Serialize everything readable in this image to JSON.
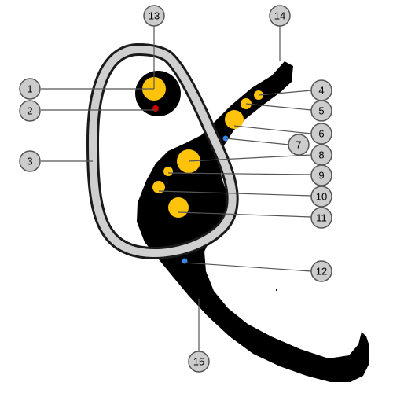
{
  "colors": {
    "background": "#ffffff",
    "body": "#000000",
    "ring_fill": "#cfcfcf",
    "ring_stroke": "#1a1a1a",
    "yellow": "#ffc30b",
    "red": "#cc0000",
    "blue": "#3a86e8",
    "callout_fill": "#cccccc",
    "callout_stroke": "#555555",
    "leader": "#555555"
  },
  "labels": [
    {
      "id": "1",
      "text": "1"
    },
    {
      "id": "2",
      "text": "2"
    },
    {
      "id": "3",
      "text": "3"
    },
    {
      "id": "4",
      "text": "4"
    },
    {
      "id": "5",
      "text": "5"
    },
    {
      "id": "6",
      "text": "6"
    },
    {
      "id": "7",
      "text": "7"
    },
    {
      "id": "8",
      "text": "8"
    },
    {
      "id": "9",
      "text": "9"
    },
    {
      "id": "10",
      "text": "10"
    },
    {
      "id": "11",
      "text": "11"
    },
    {
      "id": "12",
      "text": "12"
    },
    {
      "id": "13",
      "text": "13"
    },
    {
      "id": "14",
      "text": "14"
    },
    {
      "id": "15",
      "text": "15"
    }
  ]
}
